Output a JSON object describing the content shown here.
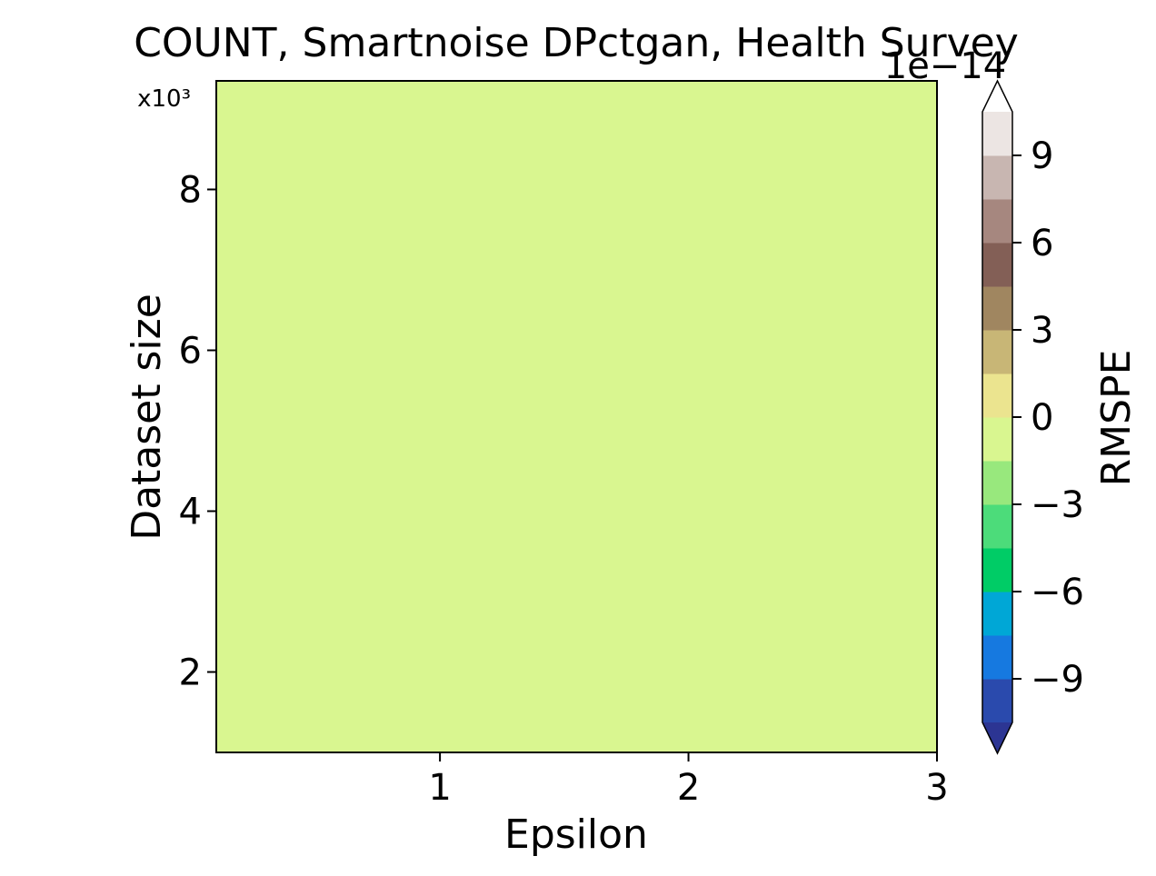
{
  "chart_data": {
    "type": "heatmap",
    "title": "COUNT, Smartnoise DPctgan, Health Survey",
    "xlabel": "Epsilon",
    "ylabel": "Dataset size",
    "y_multiplier_label": "x10³",
    "xlim": [
      0.1,
      3.0
    ],
    "ylim": [
      1.0,
      9.35
    ],
    "xticks": [
      1,
      2,
      3
    ],
    "yticks": [
      2,
      4,
      6,
      8
    ],
    "fill_value": 0,
    "fill_color": "#d9f690",
    "colorbar": {
      "label": "RMSPE",
      "offset_label": "1e−14",
      "ticks": [
        -9,
        -6,
        -3,
        0,
        3,
        6,
        9
      ],
      "tick_labels": [
        "−9",
        "−6",
        "−3",
        "0",
        "3",
        "6",
        "9"
      ],
      "range": [
        -10.5,
        10.5
      ],
      "extend": "both",
      "levels": [
        -10.5,
        -9,
        -7.5,
        -6,
        -4.5,
        -3,
        -1.5,
        0,
        1.5,
        3,
        4.5,
        6,
        7.5,
        9,
        10.5
      ],
      "colors": [
        "#2a4aad",
        "#1679e0",
        "#00a7d6",
        "#00cc66",
        "#4cdc7a",
        "#98e87d",
        "#d9f690",
        "#ebe48f",
        "#c8b676",
        "#a08660",
        "#835f56",
        "#a6877f",
        "#c8b6b1",
        "#ece5e3"
      ],
      "under_color": "#2c3593",
      "over_color": "#ffffff"
    }
  }
}
